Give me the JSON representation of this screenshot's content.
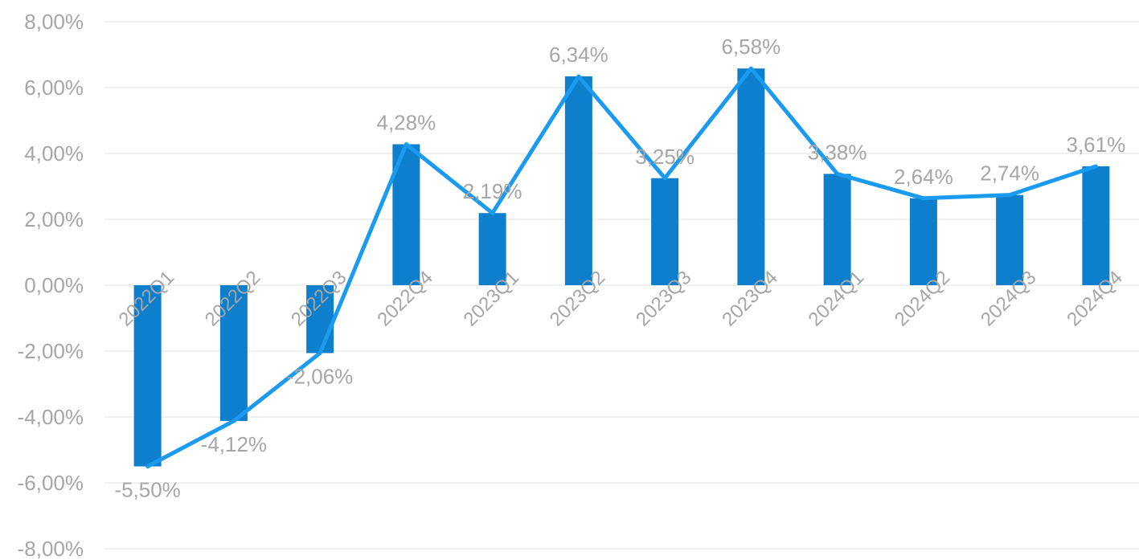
{
  "chart_data": {
    "type": "bar",
    "categories": [
      "2022Q1",
      "2022Q2",
      "2022Q3",
      "2022Q4",
      "2023Q1",
      "2023Q2",
      "2023Q3",
      "2023Q4",
      "2024Q1",
      "2024Q2",
      "2024Q3",
      "2024Q4"
    ],
    "values": [
      -5.5,
      -4.12,
      -2.06,
      4.28,
      2.19,
      6.34,
      3.25,
      6.58,
      3.38,
      2.64,
      2.74,
      3.61
    ],
    "data_labels": [
      "-5,50%",
      "-4,12%",
      "-2,06%",
      "4,28%",
      "2,19%",
      "6,34%",
      "3,25%",
      "6,58%",
      "3,38%",
      "2,64%",
      "2,74%",
      "3,61%"
    ],
    "overlay_line": {
      "values": [
        -5.5,
        -4.12,
        -2.06,
        4.28,
        2.19,
        6.34,
        3.25,
        6.58,
        3.38,
        2.64,
        2.74,
        3.61
      ]
    },
    "y_ticks": [
      8,
      6,
      4,
      2,
      0,
      -2,
      -4,
      -6,
      -8
    ],
    "y_tick_labels": [
      "8,00%",
      "6,00%",
      "4,00%",
      "2,00%",
      "0,00%",
      "-2,00%",
      "-4,00%",
      "-6,00%",
      "-8,00%"
    ],
    "ylim": [
      -8,
      8
    ],
    "title": "",
    "xlabel": "",
    "ylabel": "",
    "grid": true,
    "legend": "none",
    "colors": {
      "bar": "#0e7fcc",
      "line": "#1a9bef",
      "text": "#a6a6a6",
      "grid": "#e0e0e0"
    }
  }
}
